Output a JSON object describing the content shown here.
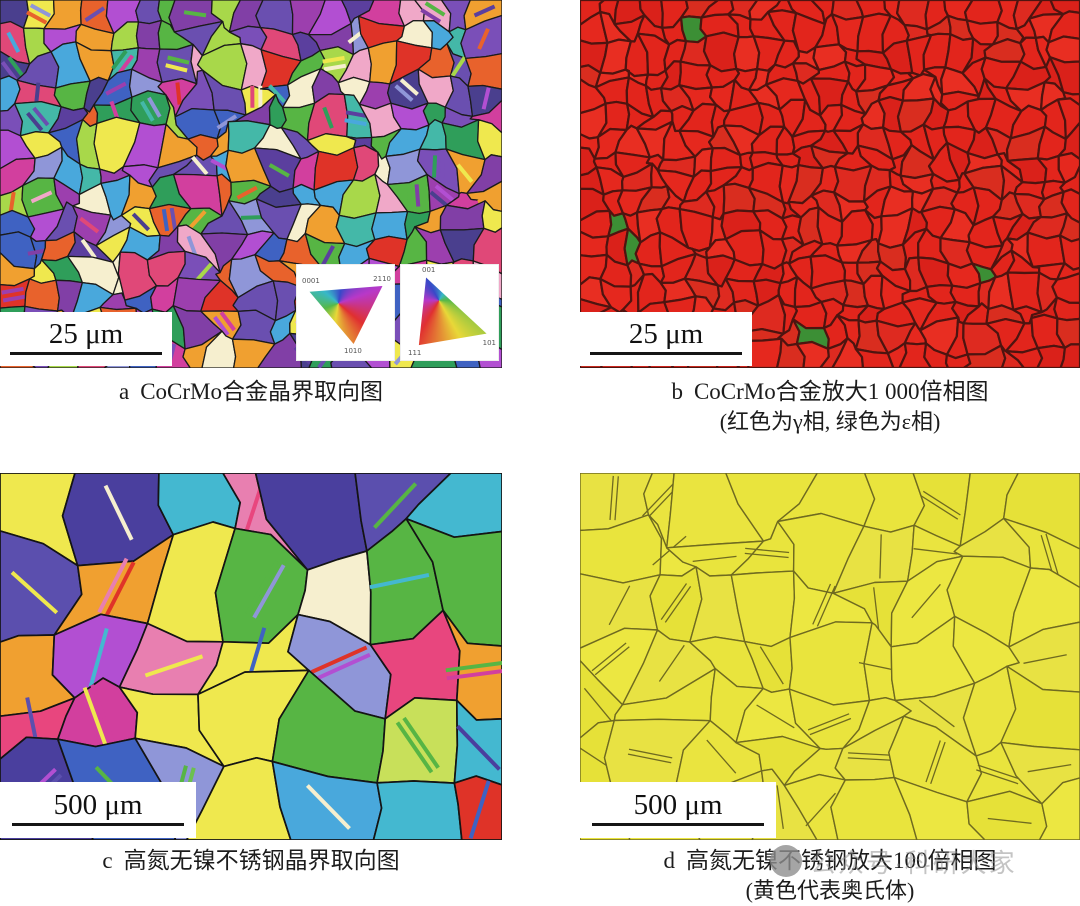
{
  "figure": {
    "panels": [
      {
        "id": "a",
        "label": "a",
        "caption": "CoCrMo合金晶界取向图",
        "caption2": "",
        "scale_bar": "25 μm"
      },
      {
        "id": "b",
        "label": "b",
        "caption": "CoCrMo合金放大1 000倍相图",
        "caption2": "(红色为γ相, 绿色为ε相)",
        "scale_bar": "25 μm"
      },
      {
        "id": "c",
        "label": "c",
        "caption": "高氮无镍不锈钢晶界取向图",
        "caption2": "",
        "scale_bar": "500 μm"
      },
      {
        "id": "d",
        "label": "d",
        "caption": "高氮无镍不锈钢放大100倍相图",
        "caption2": "(黄色代表奥氏体)",
        "scale_bar": "500 μm"
      }
    ],
    "ipf_keys": {
      "hex": {
        "c1": "0001",
        "c2": "2110",
        "c3": "1010"
      },
      "cubic": {
        "c1": "001",
        "c2": "101",
        "c3": "111"
      }
    },
    "watermark_text": "公众号·科研大家",
    "colors": {
      "gamma_phase_red": "#e2251c",
      "epsilon_phase_green": "#3c8f35",
      "austenite_yellow": "#e9e43d",
      "grain_boundary": "#141414"
    },
    "render": {
      "panels": [
        {
          "id": "a",
          "seed": 11,
          "cell": 26,
          "boundary": "#1b1b1b",
          "boundaryWidth": 1.3,
          "twinProb": 0.22,
          "twinMode": "color",
          "palette": [
            "#5b3f9e",
            "#7a4fb8",
            "#4a3f8e",
            "#9c3fae",
            "#d23f9e",
            "#e04878",
            "#df3328",
            "#e8622c",
            "#f0a030",
            "#efe84e",
            "#a8d84a",
            "#57b544",
            "#2f9e5a",
            "#44b8a8",
            "#49a8dc",
            "#3f62c2",
            "#8f96d8",
            "#f0a8c8",
            "#f6efcf",
            "#b24fd2",
            "#6a4fb0",
            "#813fa6"
          ]
        },
        {
          "id": "b",
          "seed": 22,
          "cell": 22,
          "boundary": "#4e1410",
          "boundaryWidth": 2.2,
          "accent": "#3c8f35",
          "accentProb": 0.018,
          "palette": [
            "#e2251c",
            "#da211a",
            "#e82e22",
            "#d92d1f",
            "#e2251c",
            "#e2251c",
            "#e2251c",
            "#de2a20",
            "#e5281e"
          ]
        },
        {
          "id": "c",
          "seed": 33,
          "cell": 68,
          "boundary": "#141414",
          "boundaryWidth": 1.7,
          "twinProb": 0.55,
          "twinMode": "color",
          "palette": [
            "#57b544",
            "#6cc04e",
            "#57b544",
            "#4a3f9e",
            "#5b4fae",
            "#d23f9e",
            "#e8467e",
            "#df3328",
            "#49a8dc",
            "#44b8d0",
            "#c8e05a",
            "#efe84e",
            "#f0a030",
            "#f6efcf",
            "#b24fd2",
            "#8f96d8",
            "#3f62c2",
            "#e87fb0",
            "#57b544"
          ]
        },
        {
          "id": "d",
          "seed": 44,
          "cell": 56,
          "boundary": "#6f6a20",
          "boundaryWidth": 1.4,
          "twinProb": 0.5,
          "twinMode": "boundary",
          "palette": [
            "#e9e43d",
            "#ece741",
            "#e6e138",
            "#eae43f",
            "#e8e243"
          ]
        }
      ]
    }
  }
}
